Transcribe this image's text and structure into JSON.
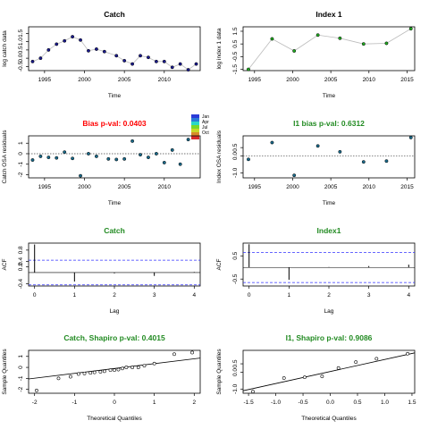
{
  "colors": {
    "red_title": "#ff0000",
    "green_title": "#228b22",
    "black": "#000000",
    "ref_line": "#444444",
    "ci_line": "#3333ff",
    "connector": "#bbbbbb",
    "point_fill_catch": "#1a1a8c",
    "point_fill_index": "#22aa22"
  },
  "legend": {
    "items": [
      "Jan",
      "Apr",
      "Jul",
      "Oct"
    ],
    "colors": [
      "#2b3bd8",
      "#2ad8c8",
      "#c8d82a",
      "#d82b2b"
    ]
  },
  "chart_data": [
    {
      "id": "catch-data",
      "type": "line",
      "title": "Catch",
      "xlabel": "Time",
      "ylabel": "log catch data",
      "xlim": [
        1993,
        2014.5
      ],
      "ylim": [
        -0.75,
        1.9
      ],
      "xticks": [
        1995,
        2000,
        2005,
        2010
      ],
      "yticks": [
        -0.5,
        0,
        0.5,
        1,
        1.5
      ],
      "yticklabels": [
        "-0.5",
        "0.0",
        "0.5",
        "1.0",
        "1.5"
      ],
      "x": [
        1993.5,
        1994.5,
        1995.5,
        1996.5,
        1997.5,
        1998.5,
        1999.5,
        2000.5,
        2001.5,
        2002.5,
        2004,
        2005,
        2006,
        2007,
        2008,
        2009,
        2010,
        2011,
        2012,
        2013,
        2014
      ],
      "y": [
        -0.2,
        0.0,
        0.5,
        0.85,
        1.05,
        1.3,
        1.1,
        0.45,
        0.55,
        0.4,
        0.15,
        -0.15,
        -0.35,
        0.15,
        0.05,
        -0.2,
        -0.2,
        -0.55,
        -0.35,
        -0.7,
        -0.35
      ],
      "point_style": "catch"
    },
    {
      "id": "index-data",
      "type": "line",
      "title": "Index 1",
      "xlabel": "Time",
      "ylabel": "log index 1 data",
      "xlim": [
        1993.5,
        2016
      ],
      "ylim": [
        -1.6,
        1.85
      ],
      "xticks": [
        1995,
        2000,
        2005,
        2010,
        2015
      ],
      "yticks": [
        -1.5,
        -0.5,
        0.5,
        1.5
      ],
      "yticklabels": [
        "-1.5",
        "-0.5",
        "0.5",
        "1.5"
      ],
      "x": [
        1994.2,
        1997.3,
        2000.2,
        2003.3,
        2006.2,
        2009.3,
        2012.3,
        2015.5
      ],
      "y": [
        -1.5,
        0.9,
        -0.05,
        1.2,
        0.95,
        0.5,
        0.55,
        1.7
      ],
      "point_style": "index"
    },
    {
      "id": "catch-osa",
      "type": "scatter",
      "title": "Bias p-val: 0.0403",
      "title_color": "red",
      "xlabel": "Time",
      "ylabel": "Catch OSA residuals",
      "xlim": [
        1993,
        2014.5
      ],
      "ylim": [
        -2.3,
        1.7
      ],
      "xticks": [
        1995,
        2000,
        2005,
        2010
      ],
      "yticks": [
        -2,
        -1,
        0,
        1
      ],
      "yticklabels": [
        "-2",
        "-1",
        "0",
        "1"
      ],
      "x": [
        1993.5,
        1994.5,
        1995.5,
        1996.5,
        1997.5,
        1998.5,
        1999.5,
        2000.5,
        2001.5,
        2003,
        2004,
        2005,
        2006,
        2007,
        2008,
        2009,
        2010,
        2011,
        2012,
        2013
      ],
      "y": [
        -0.6,
        -0.25,
        -0.35,
        -0.4,
        0.15,
        -0.45,
        -2.1,
        0.0,
        -0.25,
        -0.5,
        -0.55,
        -0.5,
        1.2,
        -0.1,
        -0.35,
        0.0,
        -0.85,
        0.35,
        -1.0,
        1.35
      ],
      "zero_line": true,
      "point_style": "osa"
    },
    {
      "id": "index-osa",
      "type": "scatter",
      "title": "I1 bias p-val: 0.6312",
      "title_color": "green",
      "xlabel": "Time",
      "ylabel": "Index OSA residuals",
      "xlim": [
        1993.5,
        2016
      ],
      "ylim": [
        -1.3,
        1.2
      ],
      "xticks": [
        1995,
        2000,
        2005,
        2010,
        2015
      ],
      "yticks": [
        -1.0,
        0.0,
        0.5
      ],
      "yticklabels": [
        "-1.0",
        "0.0",
        "0.5"
      ],
      "x": [
        1994.2,
        1997.3,
        2000.2,
        2003.3,
        2006.2,
        2009.3,
        2012.3,
        2015.5
      ],
      "y": [
        -0.2,
        0.8,
        -1.15,
        0.6,
        0.25,
        -0.35,
        -0.3,
        1.1
      ],
      "zero_line": true,
      "point_style": "osa"
    },
    {
      "id": "catch-acf",
      "type": "bar",
      "title": "Catch",
      "title_color": "green",
      "xlabel": "Lag",
      "ylabel": "ACF",
      "xlim": [
        -0.15,
        4.15
      ],
      "ylim": [
        -0.48,
        1.05
      ],
      "xticks": [
        0,
        1,
        2,
        3,
        4
      ],
      "yticks": [
        -0.4,
        0.2,
        0.4,
        0.8
      ],
      "yticklabels": [
        "-0.4",
        "0.2",
        "0.4",
        "0.8"
      ],
      "lags": [
        0,
        1,
        2,
        3,
        4
      ],
      "values": [
        1.0,
        -0.32,
        -0.03,
        -0.12,
        0.02
      ],
      "ci": [
        0.44,
        -0.44
      ],
      "series": [
        {
          "values": [
            1.0,
            -0.32,
            -0.03,
            -0.12,
            0.02
          ]
        }
      ]
    },
    {
      "id": "index-acf",
      "type": "bar",
      "title": "Index1",
      "title_color": "green",
      "xlabel": "Lag",
      "ylabel": "ACF",
      "xlim": [
        -0.15,
        4.15
      ],
      "ylim": [
        -0.8,
        1.05
      ],
      "xticks": [
        0,
        1,
        2,
        3,
        4
      ],
      "yticks": [
        -0.5,
        0.5
      ],
      "yticklabels": [
        "-0.5",
        "0.5"
      ],
      "lags": [
        0,
        1,
        2,
        3,
        4
      ],
      "values": [
        1.0,
        -0.53,
        0.02,
        0.06,
        0.12
      ],
      "ci": [
        0.65,
        -0.65
      ]
    },
    {
      "id": "catch-qq",
      "type": "scatter",
      "title": "Catch, Shapiro p-val: 0.4015",
      "title_color": "green",
      "xlabel": "Theoretical Quantiles",
      "ylabel": "Sample Quantiles",
      "xlim": [
        -2.15,
        2.15
      ],
      "ylim": [
        -2.35,
        1.55
      ],
      "xticks": [
        -2,
        -1,
        0,
        1,
        2
      ],
      "yticks": [
        -2,
        -1,
        0,
        1
      ],
      "yticklabels": [
        "-2",
        "-1",
        "0",
        "1"
      ],
      "x": [
        -1.95,
        -1.4,
        -1.1,
        -0.9,
        -0.75,
        -0.6,
        -0.5,
        -0.35,
        -0.25,
        -0.1,
        0.0,
        0.1,
        0.2,
        0.3,
        0.45,
        0.6,
        0.75,
        1.0,
        1.5,
        1.95
      ],
      "y": [
        -2.1,
        -1.0,
        -0.85,
        -0.6,
        -0.55,
        -0.5,
        -0.45,
        -0.4,
        -0.35,
        -0.25,
        -0.25,
        -0.2,
        -0.1,
        0.0,
        0.0,
        0.0,
        0.15,
        0.35,
        1.2,
        1.35
      ],
      "qq_line": [
        [
          -2.15,
          -1.05
        ],
        [
          2.15,
          0.85
        ]
      ],
      "point_style": "open"
    },
    {
      "id": "index-qq",
      "type": "scatter",
      "title": "I1, Shapiro p-val: 0.9086",
      "title_color": "green",
      "xlabel": "Theoretical Quantiles",
      "ylabel": "Sample Quantiles",
      "xlim": [
        -1.6,
        1.55
      ],
      "ylim": [
        -1.25,
        1.3
      ],
      "xticks": [
        -1.5,
        -1.0,
        -0.5,
        0.0,
        0.5,
        1.0,
        1.5
      ],
      "xticklabels": [
        "-1.5",
        "-1.0",
        "-0.5",
        "0.0",
        "0.5",
        "1.0",
        "1.5"
      ],
      "yticks": [
        -1.0,
        0.0,
        0.5
      ],
      "yticklabels": [
        "-1.0",
        "0.0",
        "0.5"
      ],
      "x": [
        -1.42,
        -0.85,
        -0.47,
        -0.15,
        0.15,
        0.47,
        0.85,
        1.42
      ],
      "y": [
        -1.15,
        -0.35,
        -0.3,
        -0.25,
        0.25,
        0.6,
        0.8,
        1.1
      ],
      "qq_line": [
        [
          -1.6,
          -1.1
        ],
        [
          1.55,
          1.15
        ]
      ],
      "point_style": "open"
    }
  ]
}
